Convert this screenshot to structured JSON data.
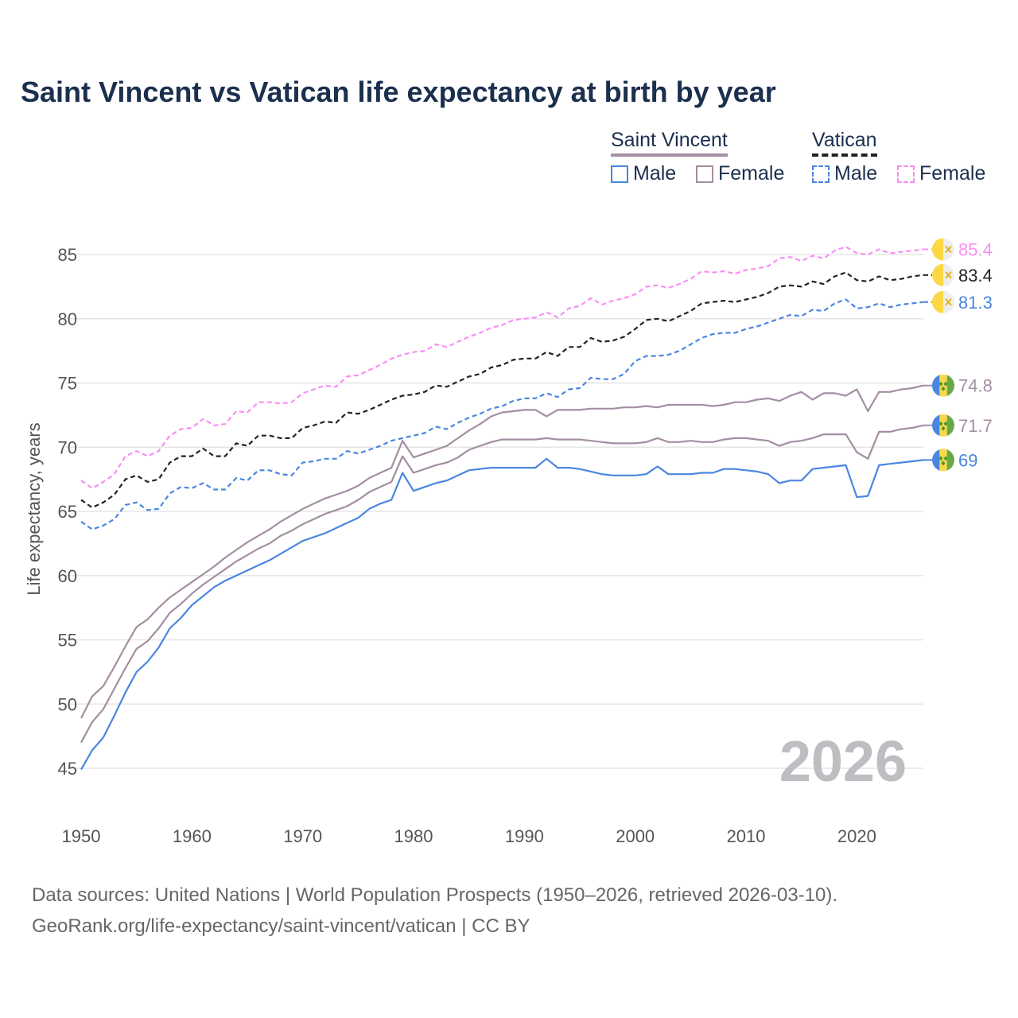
{
  "title": "Saint Vincent vs Vatican life expectancy at birth by year",
  "legend": {
    "groups": [
      {
        "name": "Saint Vincent",
        "items": [
          "Male",
          "Female"
        ]
      },
      {
        "name": "Vatican",
        "items": [
          "Male",
          "Female"
        ]
      }
    ]
  },
  "year_watermark": "2026",
  "footer": {
    "line1": "Data sources: United Nations | World Population Prospects (1950–2026, retrieved 2026-03-10).",
    "line2": "GeoRank.org/life-expectancy/saint-vincent/vatican | CC BY"
  },
  "colors": {
    "sv_male": "#4a86e0",
    "sv_female": "#a38ea3",
    "sv_total": "#a38ea3",
    "vat_male": "#4a86e0",
    "vat_female": "#f98ef5",
    "vat_total": "#222222"
  },
  "chart_data": {
    "type": "line",
    "title": "Saint Vincent vs Vatican life expectancy at birth by year",
    "xlabel": "",
    "ylabel": "Life expectancy, years",
    "xlim": [
      1950,
      2026
    ],
    "ylim": [
      44,
      86
    ],
    "x_ticks": [
      1950,
      1960,
      1970,
      1980,
      1990,
      2000,
      2010,
      2020
    ],
    "y_ticks": [
      45,
      50,
      55,
      60,
      65,
      70,
      75,
      80,
      85
    ],
    "grid": true,
    "legend_position": "top-right",
    "x_start": 1950,
    "series": [
      {
        "name": "Saint Vincent Male",
        "key": "sv_male",
        "dashed": false,
        "flag": "saint-vincent",
        "end_label": "69",
        "values": [
          44.9,
          46.4,
          47.4,
          49.1,
          50.9,
          52.5,
          53.3,
          54.4,
          55.9,
          56.7,
          57.7,
          58.4,
          59.1,
          59.6,
          60.0,
          60.4,
          60.8,
          61.2,
          61.7,
          62.2,
          62.7,
          63.0,
          63.3,
          63.7,
          64.1,
          64.5,
          65.2,
          65.6,
          65.9,
          68.0,
          66.6,
          66.9,
          67.2,
          67.4,
          67.8,
          68.2,
          68.3,
          68.4,
          68.4,
          68.4,
          68.4,
          68.4,
          69.1,
          68.4,
          68.4,
          68.3,
          68.1,
          67.9,
          67.8,
          67.8,
          67.8,
          67.9,
          68.5,
          67.9,
          67.9,
          67.9,
          68.0,
          68.0,
          68.3,
          68.3,
          68.2,
          68.1,
          67.9,
          67.2,
          67.4,
          67.4,
          68.3,
          68.4,
          68.5,
          68.6,
          66.1,
          66.2,
          68.6,
          68.7,
          68.8,
          68.9,
          69.0
        ]
      },
      {
        "name": "Saint Vincent",
        "key": "sv_total",
        "dashed": false,
        "flag": "saint-vincent",
        "end_label": "71.7",
        "values": [
          47.0,
          48.6,
          49.6,
          51.2,
          52.8,
          54.3,
          54.9,
          55.9,
          57.1,
          57.8,
          58.6,
          59.3,
          59.9,
          60.5,
          61.1,
          61.6,
          62.1,
          62.5,
          63.1,
          63.5,
          64.0,
          64.4,
          64.8,
          65.1,
          65.4,
          65.9,
          66.5,
          66.9,
          67.3,
          69.3,
          68.0,
          68.3,
          68.6,
          68.8,
          69.2,
          69.8,
          70.1,
          70.4,
          70.6,
          70.6,
          70.6,
          70.6,
          70.7,
          70.6,
          70.6,
          70.6,
          70.5,
          70.4,
          70.3,
          70.3,
          70.3,
          70.4,
          70.7,
          70.4,
          70.4,
          70.5,
          70.4,
          70.4,
          70.6,
          70.7,
          70.7,
          70.6,
          70.5,
          70.1,
          70.4,
          70.5,
          70.7,
          71.0,
          71.0,
          71.0,
          69.6,
          69.1,
          71.2,
          71.2,
          71.4,
          71.5,
          71.7
        ]
      },
      {
        "name": "Saint Vincent Female",
        "key": "sv_female",
        "dashed": false,
        "flag": "saint-vincent",
        "end_label": "74.8",
        "values": [
          48.9,
          50.6,
          51.4,
          52.9,
          54.5,
          56.0,
          56.6,
          57.5,
          58.3,
          58.9,
          59.5,
          60.1,
          60.7,
          61.4,
          62.0,
          62.6,
          63.1,
          63.6,
          64.2,
          64.7,
          65.2,
          65.6,
          66.0,
          66.3,
          66.6,
          67.0,
          67.6,
          68.0,
          68.4,
          70.5,
          69.2,
          69.5,
          69.8,
          70.1,
          70.7,
          71.3,
          71.8,
          72.4,
          72.7,
          72.8,
          72.9,
          72.9,
          72.4,
          72.9,
          72.9,
          72.9,
          73.0,
          73.0,
          73.0,
          73.1,
          73.1,
          73.2,
          73.1,
          73.3,
          73.3,
          73.3,
          73.3,
          73.2,
          73.3,
          73.5,
          73.5,
          73.7,
          73.8,
          73.6,
          74.0,
          74.3,
          73.7,
          74.2,
          74.2,
          74.0,
          74.5,
          72.8,
          74.3,
          74.3,
          74.5,
          74.6,
          74.8
        ]
      },
      {
        "name": "Vatican Male",
        "key": "vat_male",
        "dashed": true,
        "flag": "vatican",
        "end_label": "81.3",
        "values": [
          64.2,
          63.6,
          63.9,
          64.4,
          65.5,
          65.7,
          65.1,
          65.2,
          66.4,
          66.9,
          66.8,
          67.2,
          66.7,
          66.7,
          67.6,
          67.4,
          68.2,
          68.2,
          67.9,
          67.8,
          68.8,
          68.9,
          69.1,
          69.1,
          69.7,
          69.5,
          69.8,
          70.1,
          70.5,
          70.7,
          70.9,
          71.1,
          71.6,
          71.4,
          71.9,
          72.3,
          72.6,
          73.0,
          73.2,
          73.6,
          73.8,
          73.8,
          74.2,
          73.9,
          74.5,
          74.6,
          75.4,
          75.3,
          75.3,
          75.7,
          76.7,
          77.1,
          77.1,
          77.2,
          77.5,
          78.0,
          78.5,
          78.8,
          78.9,
          78.9,
          79.2,
          79.4,
          79.7,
          80.0,
          80.3,
          80.2,
          80.7,
          80.6,
          81.2,
          81.5,
          80.8,
          80.9,
          81.2,
          80.9,
          81.1,
          81.2,
          81.3
        ]
      },
      {
        "name": "Vatican",
        "key": "vat_total",
        "dashed": true,
        "flag": "vatican",
        "end_label": "83.4",
        "values": [
          65.9,
          65.3,
          65.7,
          66.3,
          67.5,
          67.8,
          67.3,
          67.5,
          68.8,
          69.3,
          69.3,
          69.9,
          69.3,
          69.3,
          70.3,
          70.1,
          70.9,
          70.9,
          70.7,
          70.7,
          71.5,
          71.7,
          72.0,
          71.9,
          72.7,
          72.6,
          72.9,
          73.3,
          73.7,
          74.0,
          74.1,
          74.3,
          74.8,
          74.7,
          75.1,
          75.5,
          75.7,
          76.2,
          76.4,
          76.8,
          76.9,
          76.9,
          77.4,
          77.1,
          77.8,
          77.8,
          78.5,
          78.2,
          78.3,
          78.6,
          79.2,
          79.9,
          80.0,
          79.8,
          80.2,
          80.6,
          81.2,
          81.3,
          81.4,
          81.3,
          81.5,
          81.7,
          82.0,
          82.5,
          82.6,
          82.5,
          82.9,
          82.7,
          83.3,
          83.6,
          83.0,
          82.9,
          83.3,
          83.0,
          83.1,
          83.3,
          83.4
        ]
      },
      {
        "name": "Vatican Female",
        "key": "vat_female",
        "dashed": true,
        "flag": "vatican",
        "end_label": "85.4",
        "values": [
          67.4,
          66.8,
          67.3,
          67.9,
          69.3,
          69.7,
          69.3,
          69.7,
          70.9,
          71.4,
          71.5,
          72.2,
          71.7,
          71.8,
          72.8,
          72.7,
          73.5,
          73.5,
          73.4,
          73.5,
          74.2,
          74.5,
          74.8,
          74.7,
          75.5,
          75.6,
          76.0,
          76.4,
          76.9,
          77.2,
          77.4,
          77.5,
          78.0,
          77.8,
          78.2,
          78.6,
          78.9,
          79.3,
          79.5,
          79.9,
          80.0,
          80.1,
          80.5,
          80.1,
          80.8,
          81.0,
          81.6,
          81.1,
          81.4,
          81.6,
          81.9,
          82.5,
          82.6,
          82.4,
          82.7,
          83.1,
          83.7,
          83.6,
          83.7,
          83.5,
          83.8,
          83.9,
          84.1,
          84.7,
          84.8,
          84.5,
          84.9,
          84.7,
          85.3,
          85.6,
          85.1,
          85.0,
          85.4,
          85.1,
          85.2,
          85.3,
          85.4
        ]
      }
    ]
  }
}
